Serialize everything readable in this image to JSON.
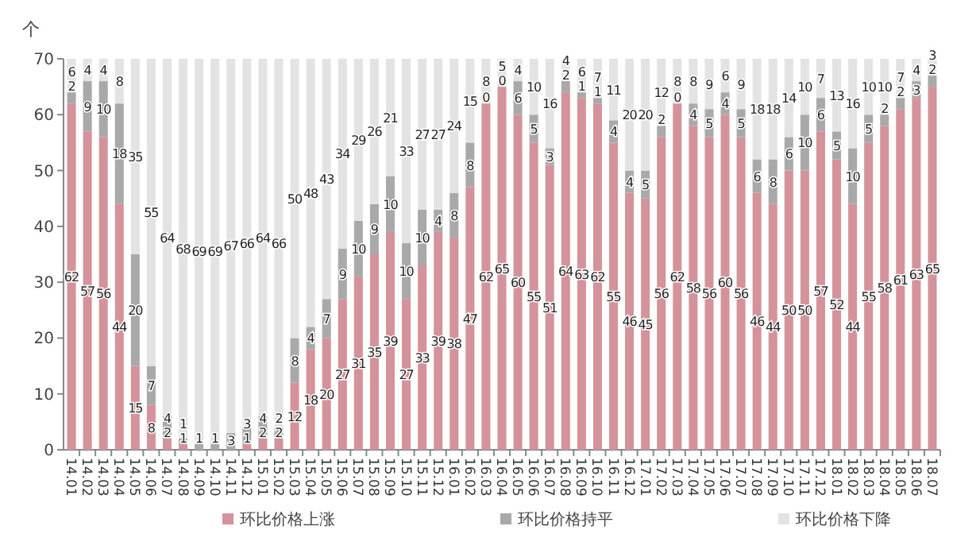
{
  "chart_data": {
    "type": "bar",
    "stacked": true,
    "data_labels": true,
    "legend": "bottom",
    "ylabel": "个",
    "ylim": [
      0,
      70
    ],
    "yticks": [
      0,
      10,
      20,
      30,
      40,
      50,
      60,
      70
    ],
    "categories": [
      "14.01",
      "14.02",
      "14.03",
      "14.04",
      "14.05",
      "14.06",
      "14.07",
      "14.08",
      "14.09",
      "14.10",
      "14.11",
      "14.12",
      "15.01",
      "15.02",
      "15.03",
      "15.04",
      "15.05",
      "15.06",
      "15.07",
      "15.08",
      "15.09",
      "15.10",
      "15.11",
      "15.12",
      "16.01",
      "16.02",
      "16.03",
      "16.04",
      "16.05",
      "16.06",
      "16.07",
      "16.08",
      "16.09",
      "16.10",
      "16.11",
      "16.12",
      "17.01",
      "17.02",
      "17.03",
      "17.04",
      "17.05",
      "17.06",
      "17.07",
      "17.08",
      "17.09",
      "17.10",
      "17.11",
      "17.12",
      "18.01",
      "18.02",
      "18.03",
      "18.04",
      "18.05",
      "18.06",
      "18.07"
    ],
    "series": [
      {
        "name": "环比价格上涨",
        "color": "#d4929a",
        "values": [
          62,
          57,
          56,
          44,
          15,
          8,
          2,
          1,
          0,
          0,
          0,
          1,
          2,
          2,
          12,
          18,
          20,
          27,
          31,
          35,
          39,
          27,
          33,
          39,
          38,
          47,
          62,
          65,
          60,
          55,
          51,
          64,
          63,
          62,
          55,
          46,
          45,
          56,
          62,
          58,
          56,
          60,
          56,
          46,
          44,
          50,
          50,
          57,
          52,
          44,
          55,
          58,
          61,
          63,
          65
        ],
        "value_labels": [
          "62",
          "57",
          "56",
          "44",
          "15",
          "8",
          "2",
          "1",
          null,
          null,
          null,
          "1",
          "2",
          "2",
          "12",
          "18",
          "20",
          "27",
          "31",
          "35",
          "39",
          "27",
          "33",
          "39",
          "38",
          "47",
          "62",
          "65",
          "60",
          "55",
          "51",
          "64",
          "63",
          "62",
          "55",
          "46",
          "45",
          "56",
          "62",
          "58",
          "56",
          "60",
          "56",
          "46",
          "44",
          "50",
          "50",
          "57",
          "52",
          "44",
          "55",
          "58",
          "61",
          "63",
          "65"
        ]
      },
      {
        "name": "环比价格持平",
        "color": "#a9a9a9",
        "values": [
          2,
          9,
          10,
          18,
          20,
          7,
          4,
          1,
          1,
          1,
          3,
          3,
          4,
          2,
          8,
          4,
          7,
          9,
          10,
          9,
          10,
          10,
          10,
          4,
          8,
          8,
          0,
          0,
          6,
          5,
          3,
          2,
          1,
          1,
          4,
          4,
          5,
          2,
          0,
          4,
          5,
          4,
          5,
          6,
          8,
          6,
          10,
          6,
          5,
          10,
          5,
          2,
          2,
          3,
          2
        ]
      },
      {
        "name": "环比价格下降",
        "color": "#e3e3e3",
        "values": [
          6,
          4,
          4,
          8,
          35,
          55,
          64,
          68,
          69,
          69,
          67,
          66,
          64,
          66,
          50,
          48,
          43,
          34,
          29,
          26,
          21,
          33,
          27,
          27,
          24,
          15,
          8,
          5,
          4,
          10,
          16,
          4,
          6,
          7,
          11,
          20,
          20,
          12,
          8,
          8,
          9,
          6,
          9,
          18,
          18,
          14,
          10,
          7,
          13,
          16,
          10,
          10,
          7,
          4,
          3
        ]
      }
    ]
  }
}
